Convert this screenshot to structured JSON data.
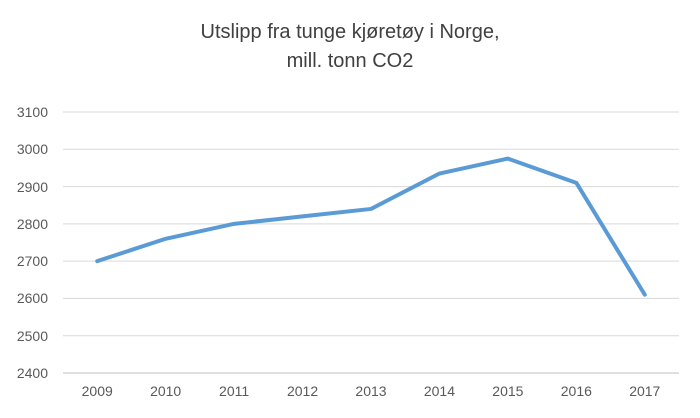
{
  "title": {
    "line1": "Utslipp fra tunge kjøretøy i Norge,",
    "line2": "mill. tonn CO2"
  },
  "chart_data": {
    "type": "line",
    "title": "Utslipp fra tunge kjøretøy i Norge, mill. tonn CO2",
    "categories": [
      "2009",
      "2010",
      "2011",
      "2012",
      "2013",
      "2014",
      "2015",
      "2016",
      "2017"
    ],
    "values": [
      2700,
      2760,
      2800,
      2820,
      2840,
      2935,
      2975,
      2910,
      2610
    ],
    "xlabel": "",
    "ylabel": "",
    "ylim": [
      2400,
      3100
    ],
    "y_ticks": [
      2400,
      2500,
      2600,
      2700,
      2800,
      2900,
      3000,
      3100
    ],
    "grid": true,
    "legend": false
  },
  "colors": {
    "line": "#5B9BD5",
    "gridline": "#D9D9D9",
    "axis_line": "#BFBFBF",
    "tick_label": "#595959",
    "title_text": "#404040",
    "background": "#FFFFFF"
  }
}
